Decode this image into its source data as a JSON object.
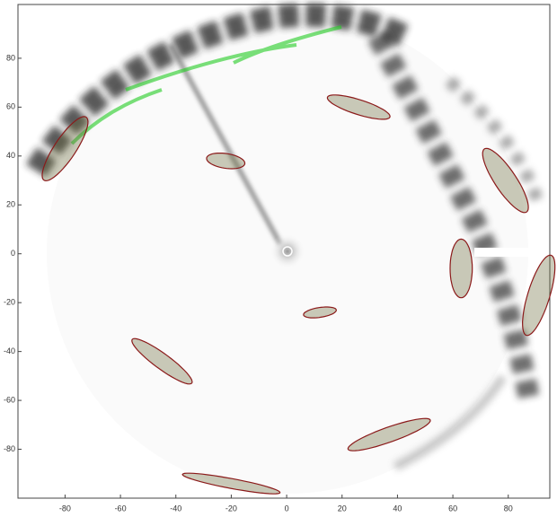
{
  "chart_data": {
    "type": "ellipses",
    "x": [
      26,
      -22,
      79,
      -80,
      63,
      91,
      12,
      -45,
      37,
      -20
    ],
    "values": [
      60,
      38,
      30,
      43,
      -6,
      -17,
      -24,
      -44,
      -74,
      -94
    ],
    "major": [
      12,
      7,
      15,
      15,
      12,
      17,
      6,
      14,
      16,
      18
    ],
    "minor": [
      3,
      3,
      4,
      4,
      4,
      4,
      2,
      3,
      3,
      2
    ],
    "angle": [
      -20,
      -10,
      -60,
      60,
      90,
      75,
      10,
      -40,
      22,
      -12
    ],
    "color": "#8b1a1a",
    "xlim": [
      -97,
      95
    ],
    "ylim": [
      -100,
      102
    ],
    "xticks": [
      -80,
      -60,
      -40,
      -20,
      0,
      20,
      40,
      60,
      80
    ],
    "yticks": [
      -80,
      -60,
      -40,
      -20,
      0,
      20,
      40,
      60,
      80
    ]
  }
}
